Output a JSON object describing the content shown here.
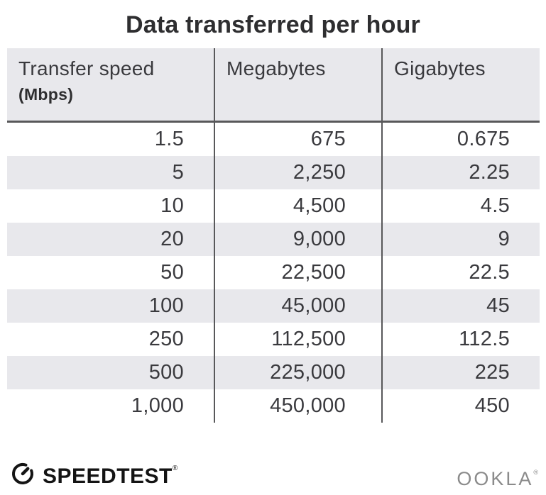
{
  "title": "Data transferred per hour",
  "table": {
    "headers": [
      {
        "label": "Transfer speed",
        "sublabel": "(Mbps)"
      },
      {
        "label": "Megabytes",
        "sublabel": ""
      },
      {
        "label": "Gigabytes",
        "sublabel": ""
      }
    ],
    "rows": [
      [
        "1.5",
        "675",
        "0.675"
      ],
      [
        "5",
        "2,250",
        "2.25"
      ],
      [
        "10",
        "4,500",
        "4.5"
      ],
      [
        "20",
        "9,000",
        "9"
      ],
      [
        "50",
        "22,500",
        "22.5"
      ],
      [
        "100",
        "45,000",
        "45"
      ],
      [
        "250",
        "112,500",
        "112.5"
      ],
      [
        "500",
        "225,000",
        "225"
      ],
      [
        "1,000",
        "450,000",
        "450"
      ]
    ]
  },
  "footer": {
    "speedtest_label": "SPEEDTEST",
    "speedtest_mark": "®",
    "ookla_label": "OOKLA",
    "ookla_mark": "®"
  },
  "colors": {
    "title_text": "#2e2e30",
    "body_text": "#3a3a3e",
    "zebra_row": "#e8e8ec",
    "header_bg": "#e8e8ec",
    "rule_dark": "#58585a",
    "speedtest_black": "#141414",
    "ookla_gray": "#8b8b8b"
  },
  "chart_data": {
    "type": "table",
    "title": "Data transferred per hour",
    "columns": [
      "Transfer speed (Mbps)",
      "Megabytes",
      "Gigabytes"
    ],
    "rows": [
      [
        1.5,
        675,
        0.675
      ],
      [
        5,
        2250,
        2.25
      ],
      [
        10,
        4500,
        4.5
      ],
      [
        20,
        9000,
        9
      ],
      [
        50,
        22500,
        22.5
      ],
      [
        100,
        45000,
        45
      ],
      [
        250,
        112500,
        112.5
      ],
      [
        500,
        225000,
        225
      ],
      [
        1000,
        450000,
        450
      ]
    ],
    "layout": {
      "zebra_striping": true,
      "column_dividers": true,
      "header_underline": true
    }
  }
}
